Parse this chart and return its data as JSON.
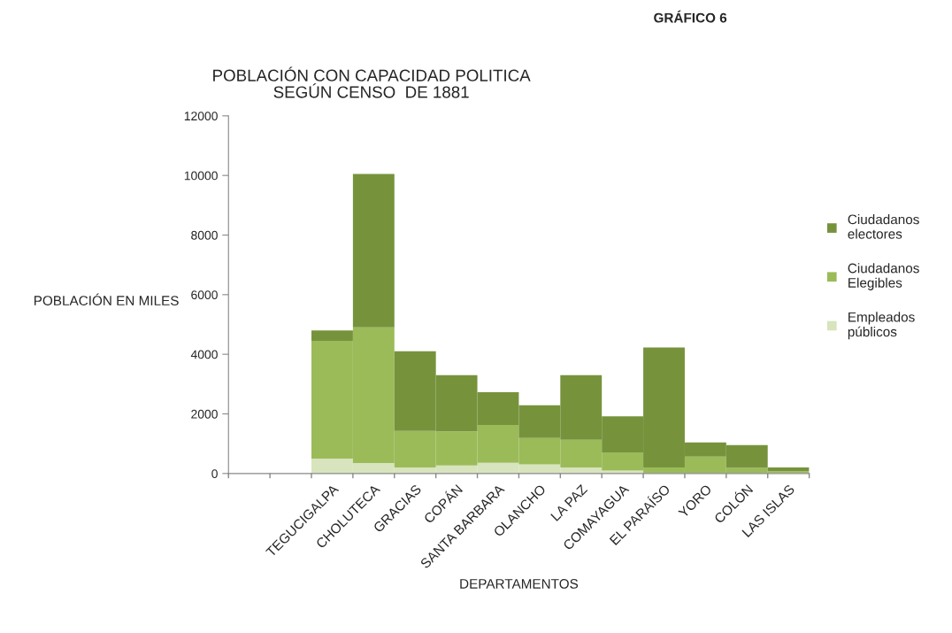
{
  "chart_data": {
    "type": "bar",
    "title": "POBLACIÓN CON CAPACIDAD POLITICA\nSEGÚN CENSO  DE 1881",
    "subtitle": "GRÁFICO 6",
    "xlabel": "DEPARTAMENTOS",
    "ylabel": "POBLACIÓN EN MILES",
    "categories": [
      null,
      null,
      "TEGUCIGALPA",
      "CHOLUTECA",
      "GRACIAS",
      "COPÁN",
      "SANTA BARBARA",
      "OLANCHO",
      "LA PAZ",
      "COMAYAGUA",
      "EL PARAÍSO",
      "YORO",
      "COLÓN",
      "LAS ISLAS"
    ],
    "stacked": true,
    "series": [
      {
        "name": "Empleados\npúblicos",
        "color": "#d7e4bd",
        "values": [
          null,
          null,
          500,
          350,
          200,
          270,
          360,
          310,
          200,
          100,
          null,
          null,
          null,
          20
        ]
      },
      {
        "name": "Ciudadanos\nElegibles",
        "color": "#9bbb59",
        "values": [
          null,
          null,
          3950,
          4550,
          1230,
          1140,
          1270,
          880,
          930,
          610,
          200,
          570,
          190,
          60
        ]
      },
      {
        "name": "Ciudadanos\nelectores",
        "color": "#76933c",
        "values": [
          null,
          null,
          350,
          5150,
          2670,
          1890,
          1100,
          1100,
          2170,
          1210,
          4030,
          470,
          760,
          120
        ]
      }
    ],
    "ylim": [
      0,
      12000
    ],
    "yticks": [
      0,
      2000,
      4000,
      6000,
      8000,
      10000,
      12000
    ],
    "grid": false,
    "legend": "right"
  }
}
